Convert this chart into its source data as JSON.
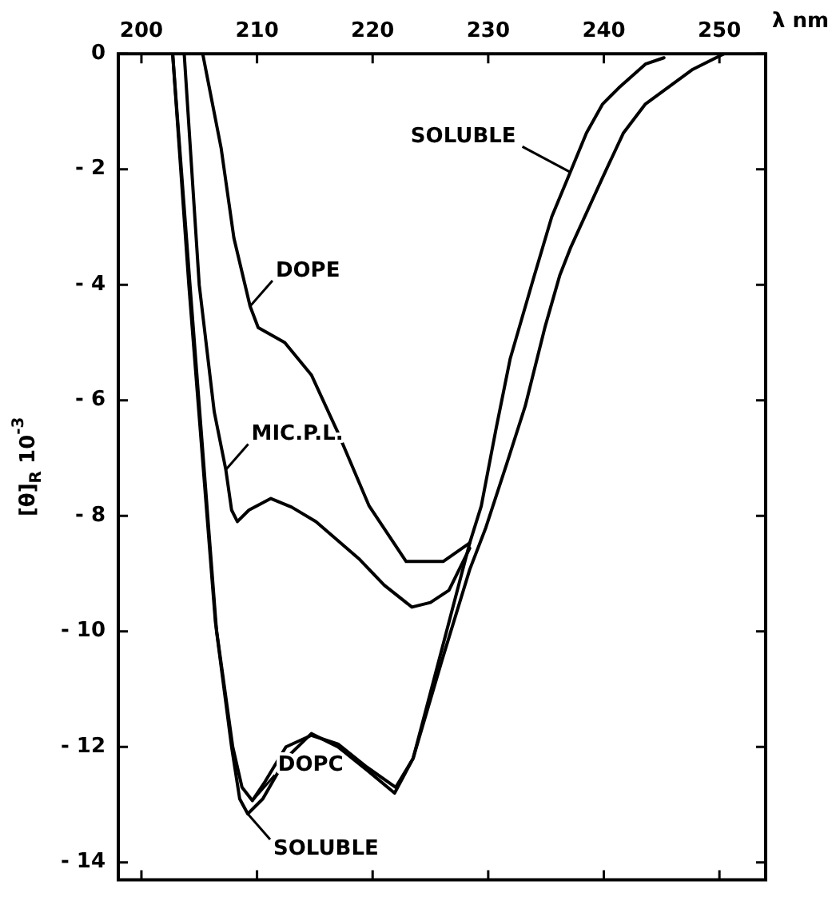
{
  "chart_data": {
    "type": "line",
    "xlabel": "λ nm",
    "ylabel": "[θ]$_{R}$ 10$^{-3}$",
    "xlim": [
      198,
      254
    ],
    "ylim": [
      -14.3,
      0
    ],
    "xticks": [
      200,
      210,
      220,
      230,
      240,
      250
    ],
    "yticks": [
      0,
      -2,
      -4,
      -6,
      -8,
      -10,
      -12,
      -14
    ],
    "grid": false,
    "legend": false,
    "marker": "none",
    "line_style": "solid",
    "series": [
      {
        "color": "#000000",
        "x": [
          202.7,
          204.2,
          206.5,
          207.8,
          208.5,
          209.2,
          210.5,
          212.5,
          214.7,
          217,
          219.5,
          221.9,
          223.5,
          226,
          228.4,
          229.4,
          230.7,
          231.9,
          233.9,
          235.5,
          237.1,
          238.5,
          239.9,
          241.3,
          243.6,
          245.2
        ],
        "values": [
          0,
          -4,
          -10,
          -12,
          -12.9,
          -13.16,
          -12.9,
          -12.2,
          -11.77,
          -12.0,
          -12.4,
          -12.8,
          -12.2,
          -10.3,
          -8.47,
          -7.83,
          -6.47,
          -5.28,
          -3.9,
          -2.82,
          -2.05,
          -1.37,
          -0.87,
          -0.59,
          -0.18,
          -0.07
        ]
      },
      {
        "color": "#000000",
        "x": [
          202.7,
          204.1,
          206.4,
          207.9,
          208.7,
          209.6,
          210.7,
          212.5,
          214.7,
          217,
          219.5,
          222,
          223.5,
          226,
          228.4,
          229.8,
          231.6,
          233.2,
          234.9,
          236.2,
          237.1,
          239.9,
          241.7,
          243.6,
          247.7,
          250.4
        ],
        "values": [
          0,
          -4,
          -9.84,
          -12,
          -12.7,
          -12.93,
          -12.6,
          -12.0,
          -11.8,
          -11.95,
          -12.35,
          -12.7,
          -12.2,
          -10.5,
          -8.93,
          -8.2,
          -7.1,
          -6.1,
          -4.74,
          -3.83,
          -3.37,
          -2.14,
          -1.37,
          -0.87,
          -0.27,
          0
        ]
      },
      {
        "color": "#000000",
        "x": [
          203.7,
          205.0,
          206.3,
          207.3,
          207.8,
          208.3,
          209.3,
          211.2,
          213,
          215.1,
          218.8,
          221,
          223.4,
          225,
          226.6,
          228.4
        ],
        "values": [
          0,
          -4,
          -6.2,
          -7.2,
          -7.9,
          -8.1,
          -7.9,
          -7.7,
          -7.85,
          -8.1,
          -8.74,
          -9.2,
          -9.58,
          -9.5,
          -9.29,
          -8.56
        ]
      },
      {
        "color": "#000000",
        "x": [
          205.3,
          206.9,
          208.0,
          209.4,
          210.1,
          212.4,
          214.7,
          217.0,
          219.7,
          222.9,
          226.1,
          228.4
        ],
        "values": [
          0,
          -1.64,
          -3.19,
          -4.37,
          -4.74,
          -5.0,
          -5.56,
          -6.56,
          -7.83,
          -8.79,
          -8.79,
          -8.47
        ]
      }
    ],
    "annotations": [
      {
        "text": "SOLUBLE",
        "x": 237.1,
        "y": -2.05
      },
      {
        "text": "DOPE",
        "x": 209.4,
        "y": -4.37
      },
      {
        "text": "MIC.P.L.",
        "x": 207.3,
        "y": -7.2
      },
      {
        "text": "DOPC",
        "x": 209.6,
        "y": -12.93
      },
      {
        "text": "SOLUBLE",
        "x": 209.2,
        "y": -13.16
      }
    ]
  }
}
